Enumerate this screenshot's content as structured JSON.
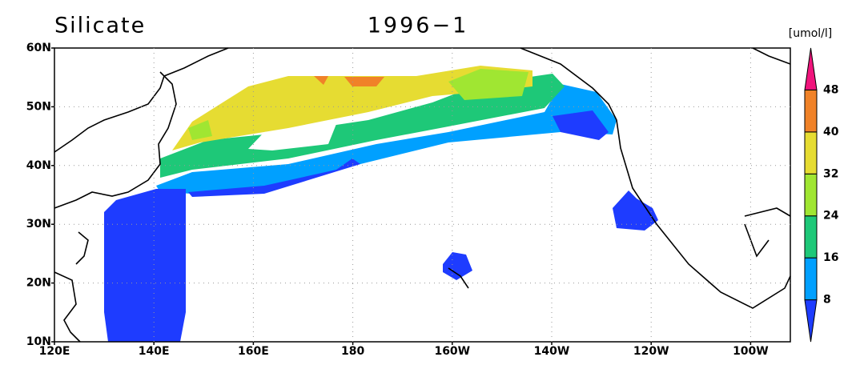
{
  "map": {
    "title": "Silicate",
    "date": "1996−1",
    "units": "[umol/l]",
    "lat_labels": [
      "60N",
      "50N",
      "40N",
      "30N",
      "20N",
      "10N"
    ],
    "lon_labels": [
      "120E",
      "140E",
      "160E",
      "180",
      "160W",
      "140W",
      "120W",
      "100W"
    ],
    "colorbar": {
      "levels": [
        8,
        16,
        24,
        32,
        40,
        48
      ],
      "colors": [
        "#1e3cff",
        "#00a0ff",
        "#1ec878",
        "#a0e632",
        "#e6dc32",
        "#f08228",
        "#f0147c"
      ]
    }
  }
}
